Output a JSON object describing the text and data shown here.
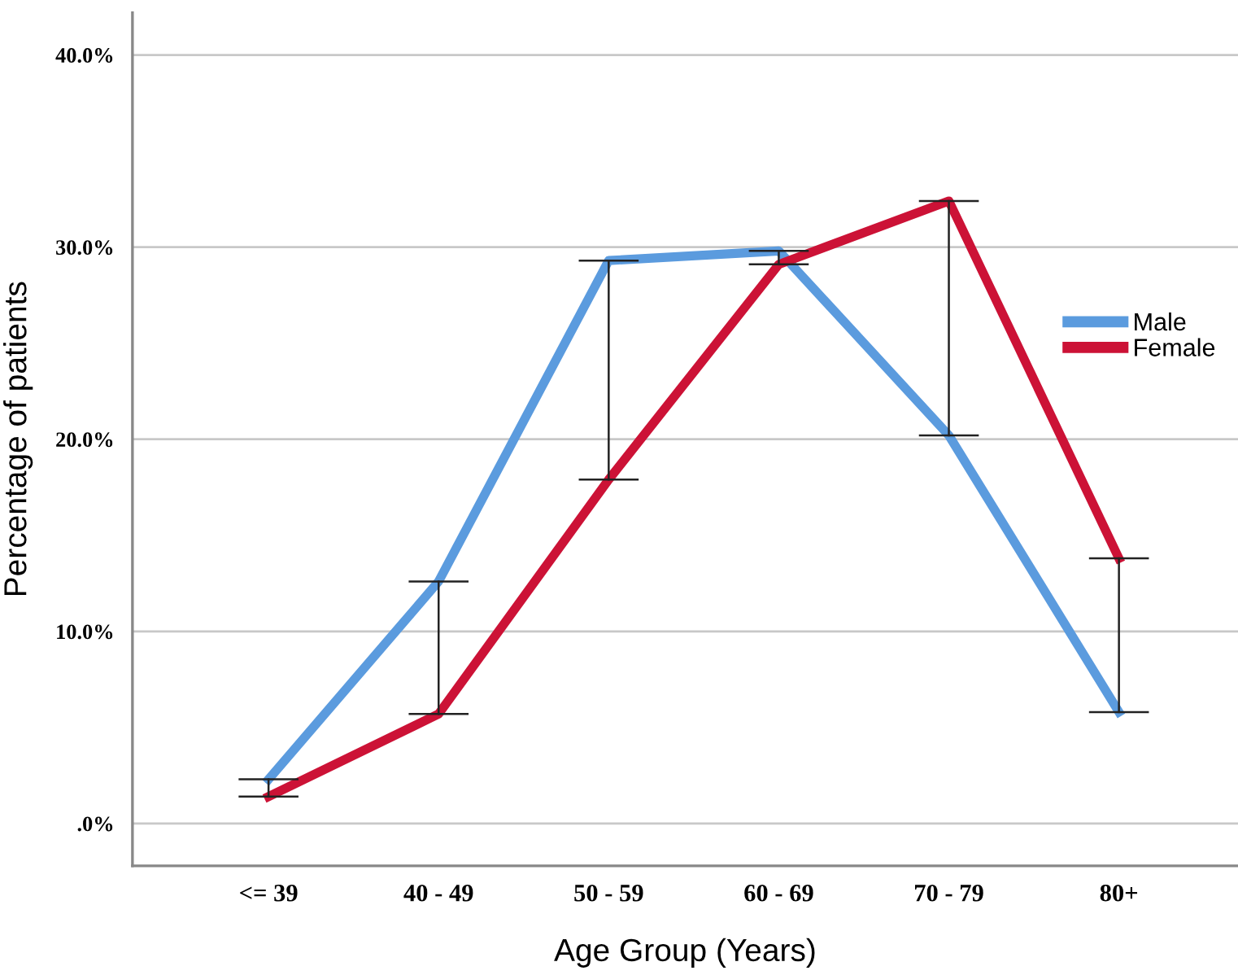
{
  "chart_data": {
    "type": "line",
    "xlabel": "Age Group (Years)",
    "ylabel": "Percentage of patients",
    "categories": [
      "<= 39",
      "40 - 49",
      "50 - 59",
      "60 - 69",
      "70 - 79",
      "80+"
    ],
    "series": [
      {
        "name": "Male",
        "color": "#5b9bde",
        "values": [
          2.3,
          12.6,
          29.3,
          29.8,
          20.2,
          5.8
        ],
        "errors": [
          [
            1.4,
            2.3
          ],
          [
            5.7,
            12.6
          ],
          [
            17.9,
            29.3
          ],
          [
            29.1,
            29.8
          ],
          [
            20.2,
            32.4
          ],
          [
            5.8,
            13.8
          ]
        ]
      },
      {
        "name": "Female",
        "color": "#cc1236",
        "values": [
          1.4,
          5.7,
          17.9,
          29.1,
          32.4,
          13.8
        ]
      }
    ],
    "ylim": [
      -2.2,
      42.2
    ],
    "yticks": [
      {
        "value": 0,
        "label": ".0%"
      },
      {
        "value": 10,
        "label": "10.0%"
      },
      {
        "value": 20,
        "label": "20.0%"
      },
      {
        "value": 30,
        "label": "30.0%"
      },
      {
        "value": 40,
        "label": "40.0%"
      }
    ],
    "grid": "y",
    "legend": "right",
    "marker": "none",
    "line_style": "solid"
  }
}
